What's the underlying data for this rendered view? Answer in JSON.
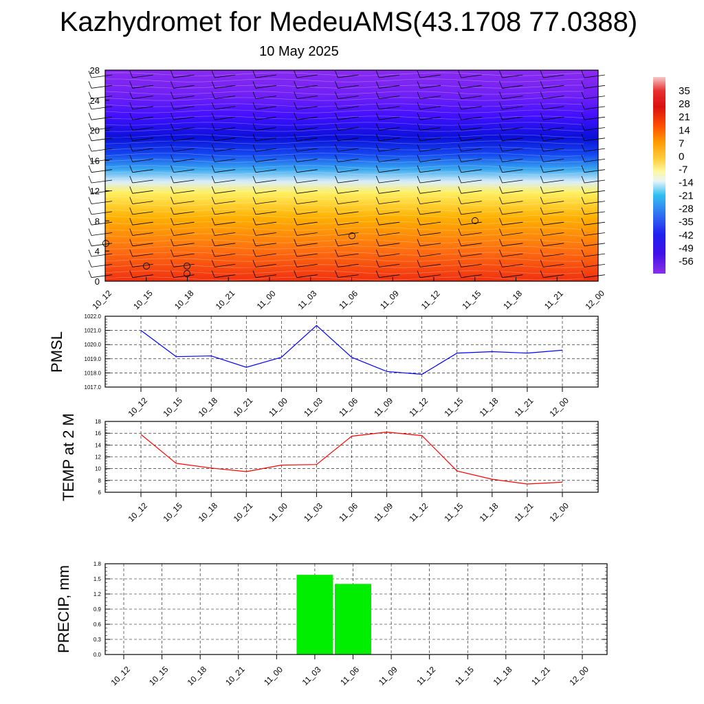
{
  "header": {
    "title": "Kazhydromet for MedeuAMS(43.1708 77.0388)",
    "subtitle": "10 May 2025"
  },
  "chart_data": [
    {
      "type": "heatmap",
      "x": [
        "10_12",
        "10_15",
        "10_18",
        "10_21",
        "11_00",
        "11_03",
        "11_06",
        "11_09",
        "11_12",
        "11_15",
        "11_18",
        "11_21",
        "12_00"
      ],
      "y_ticks": [
        0,
        4,
        8,
        12,
        16,
        20,
        24,
        28
      ],
      "ylim": [
        0,
        28
      ],
      "colorbar_ticks": [
        35,
        28,
        21,
        14,
        7,
        0,
        -7,
        -14,
        -21,
        -28,
        -35,
        -42,
        -49,
        -56
      ],
      "colorbar_range": [
        -63,
        42
      ],
      "grid": false
    },
    {
      "type": "line",
      "ylabel": "PMSL",
      "x": [
        "10_12",
        "10_15",
        "10_18",
        "10_21",
        "11_00",
        "11_03",
        "11_06",
        "11_09",
        "11_12",
        "11_15",
        "11_18",
        "11_21",
        "12_00"
      ],
      "y_ticks": [
        "1017.0",
        "1018.0",
        "1019.0",
        "1020.0",
        "1021.0",
        "1022.0"
      ],
      "ylim": [
        1017,
        1022
      ],
      "series": [
        {
          "values": [
            1021.0,
            1019.15,
            1019.2,
            1018.4,
            1019.1,
            1021.35,
            1019.1,
            1018.1,
            1017.9,
            1019.4,
            1019.5,
            1019.4,
            1019.6
          ],
          "color": "#0000ff"
        }
      ],
      "grid": true
    },
    {
      "type": "line",
      "ylabel": "TEMP at 2 M",
      "x": [
        "10_12",
        "10_15",
        "10_18",
        "10_21",
        "11_00",
        "11_03",
        "11_06",
        "11_09",
        "11_12",
        "11_15",
        "11_18",
        "11_21",
        "12_00"
      ],
      "y_ticks": [
        "6",
        "8",
        "10",
        "12",
        "14",
        "16",
        "18"
      ],
      "ylim": [
        6,
        18
      ],
      "series": [
        {
          "values": [
            15.8,
            10.9,
            10.1,
            9.5,
            10.6,
            10.7,
            15.5,
            16.2,
            15.6,
            9.6,
            8.2,
            7.4,
            7.7
          ],
          "color": "#ff0000"
        }
      ],
      "grid": true
    },
    {
      "type": "bar",
      "ylabel": "PRECIP, mm",
      "categories": [
        "10_12",
        "10_15",
        "10_18",
        "10_21",
        "11_00",
        "11_03",
        "11_06",
        "11_09",
        "11_12",
        "11_15",
        "11_18",
        "11_21",
        "12_00"
      ],
      "values": [
        0,
        0,
        0,
        0,
        0,
        1.58,
        1.4,
        0,
        0,
        0,
        0,
        0,
        0
      ],
      "y_ticks": [
        "0.0",
        "0.3",
        "0.6",
        "0.9",
        "1.2",
        "1.5",
        "1.8"
      ],
      "ylim": [
        0,
        1.8
      ],
      "bar_color": "#00ee00",
      "grid": true
    }
  ]
}
